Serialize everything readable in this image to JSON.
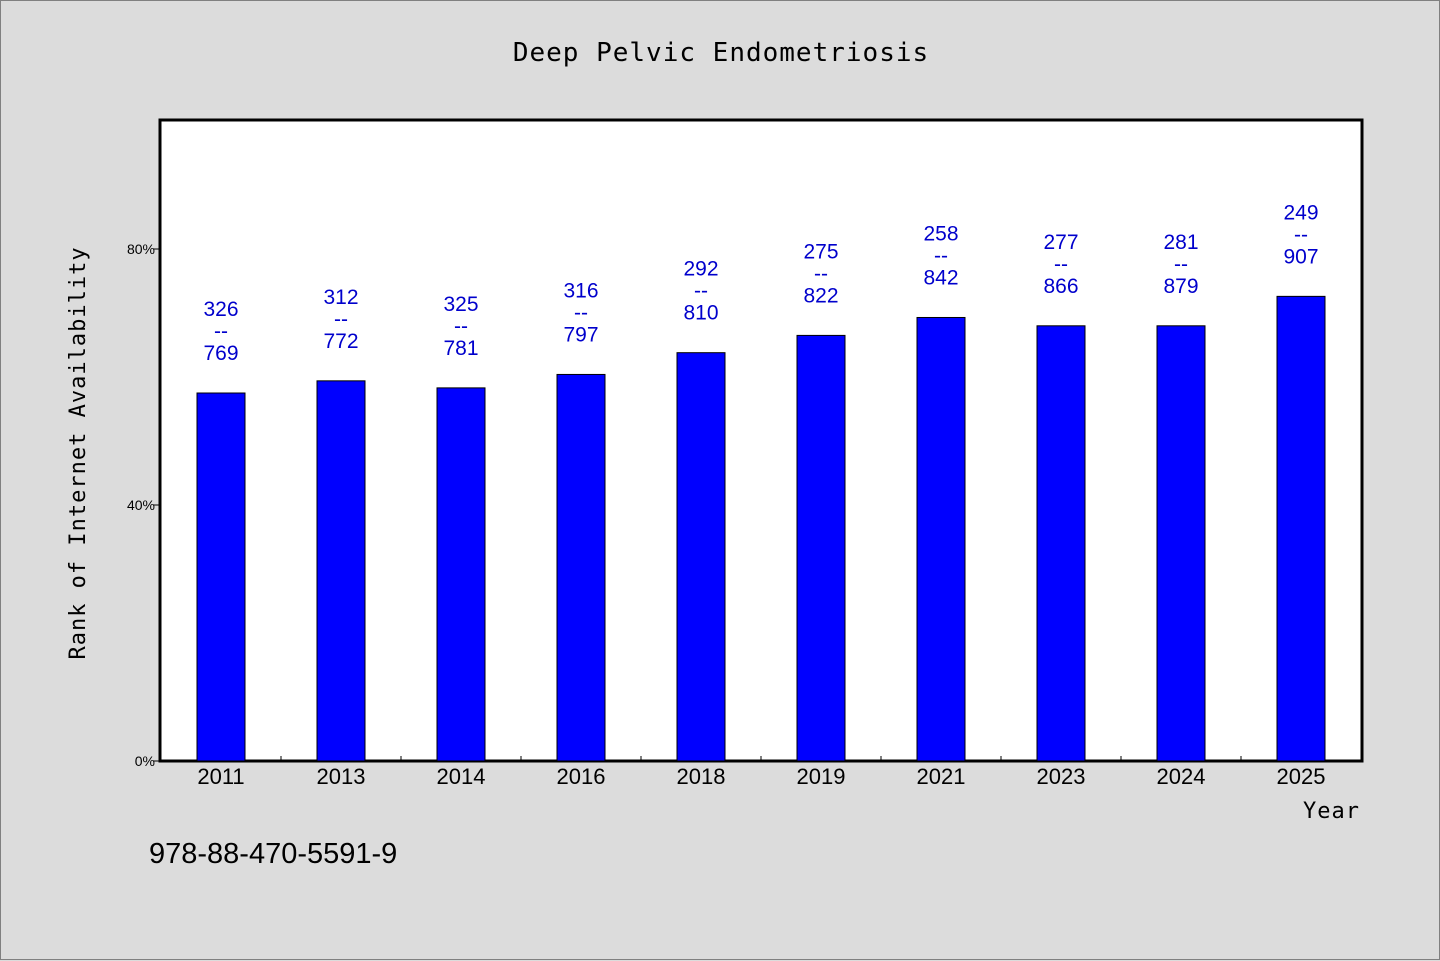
{
  "chart_data": {
    "type": "bar",
    "title": "Deep Pelvic Endometriosis",
    "xlabel": "Year",
    "ylabel": "Rank of Internet Availability",
    "ylim": [
      0,
      100
    ],
    "yticks": [
      {
        "value": 0,
        "label": "0%"
      },
      {
        "value": 40,
        "label": "40%"
      },
      {
        "value": 80,
        "label": "80%"
      }
    ],
    "categories": [
      "2011",
      "2013",
      "2014",
      "2016",
      "2018",
      "2019",
      "2021",
      "2023",
      "2024",
      "2025"
    ],
    "values": [
      57.5,
      59.4,
      58.3,
      60.4,
      63.8,
      66.5,
      69.3,
      68.0,
      68.0,
      72.6
    ],
    "data_labels": [
      [
        "326",
        "--",
        "769"
      ],
      [
        "312",
        "--",
        "772"
      ],
      [
        "325",
        "--",
        "781"
      ],
      [
        "316",
        "--",
        "797"
      ],
      [
        "292",
        "--",
        "810"
      ],
      [
        "275",
        "--",
        "822"
      ],
      [
        "258",
        "--",
        "842"
      ],
      [
        "277",
        "--",
        "866"
      ],
      [
        "281",
        "--",
        "879"
      ],
      [
        "249",
        "--",
        "907"
      ]
    ],
    "bar_color": "#0000ff",
    "label_color": "#0000cc",
    "grid": false
  },
  "footer": {
    "isbn": "978-88-470-5591-9"
  },
  "colors": {
    "background": "#dcdcdc",
    "plot_background": "#ffffff"
  }
}
